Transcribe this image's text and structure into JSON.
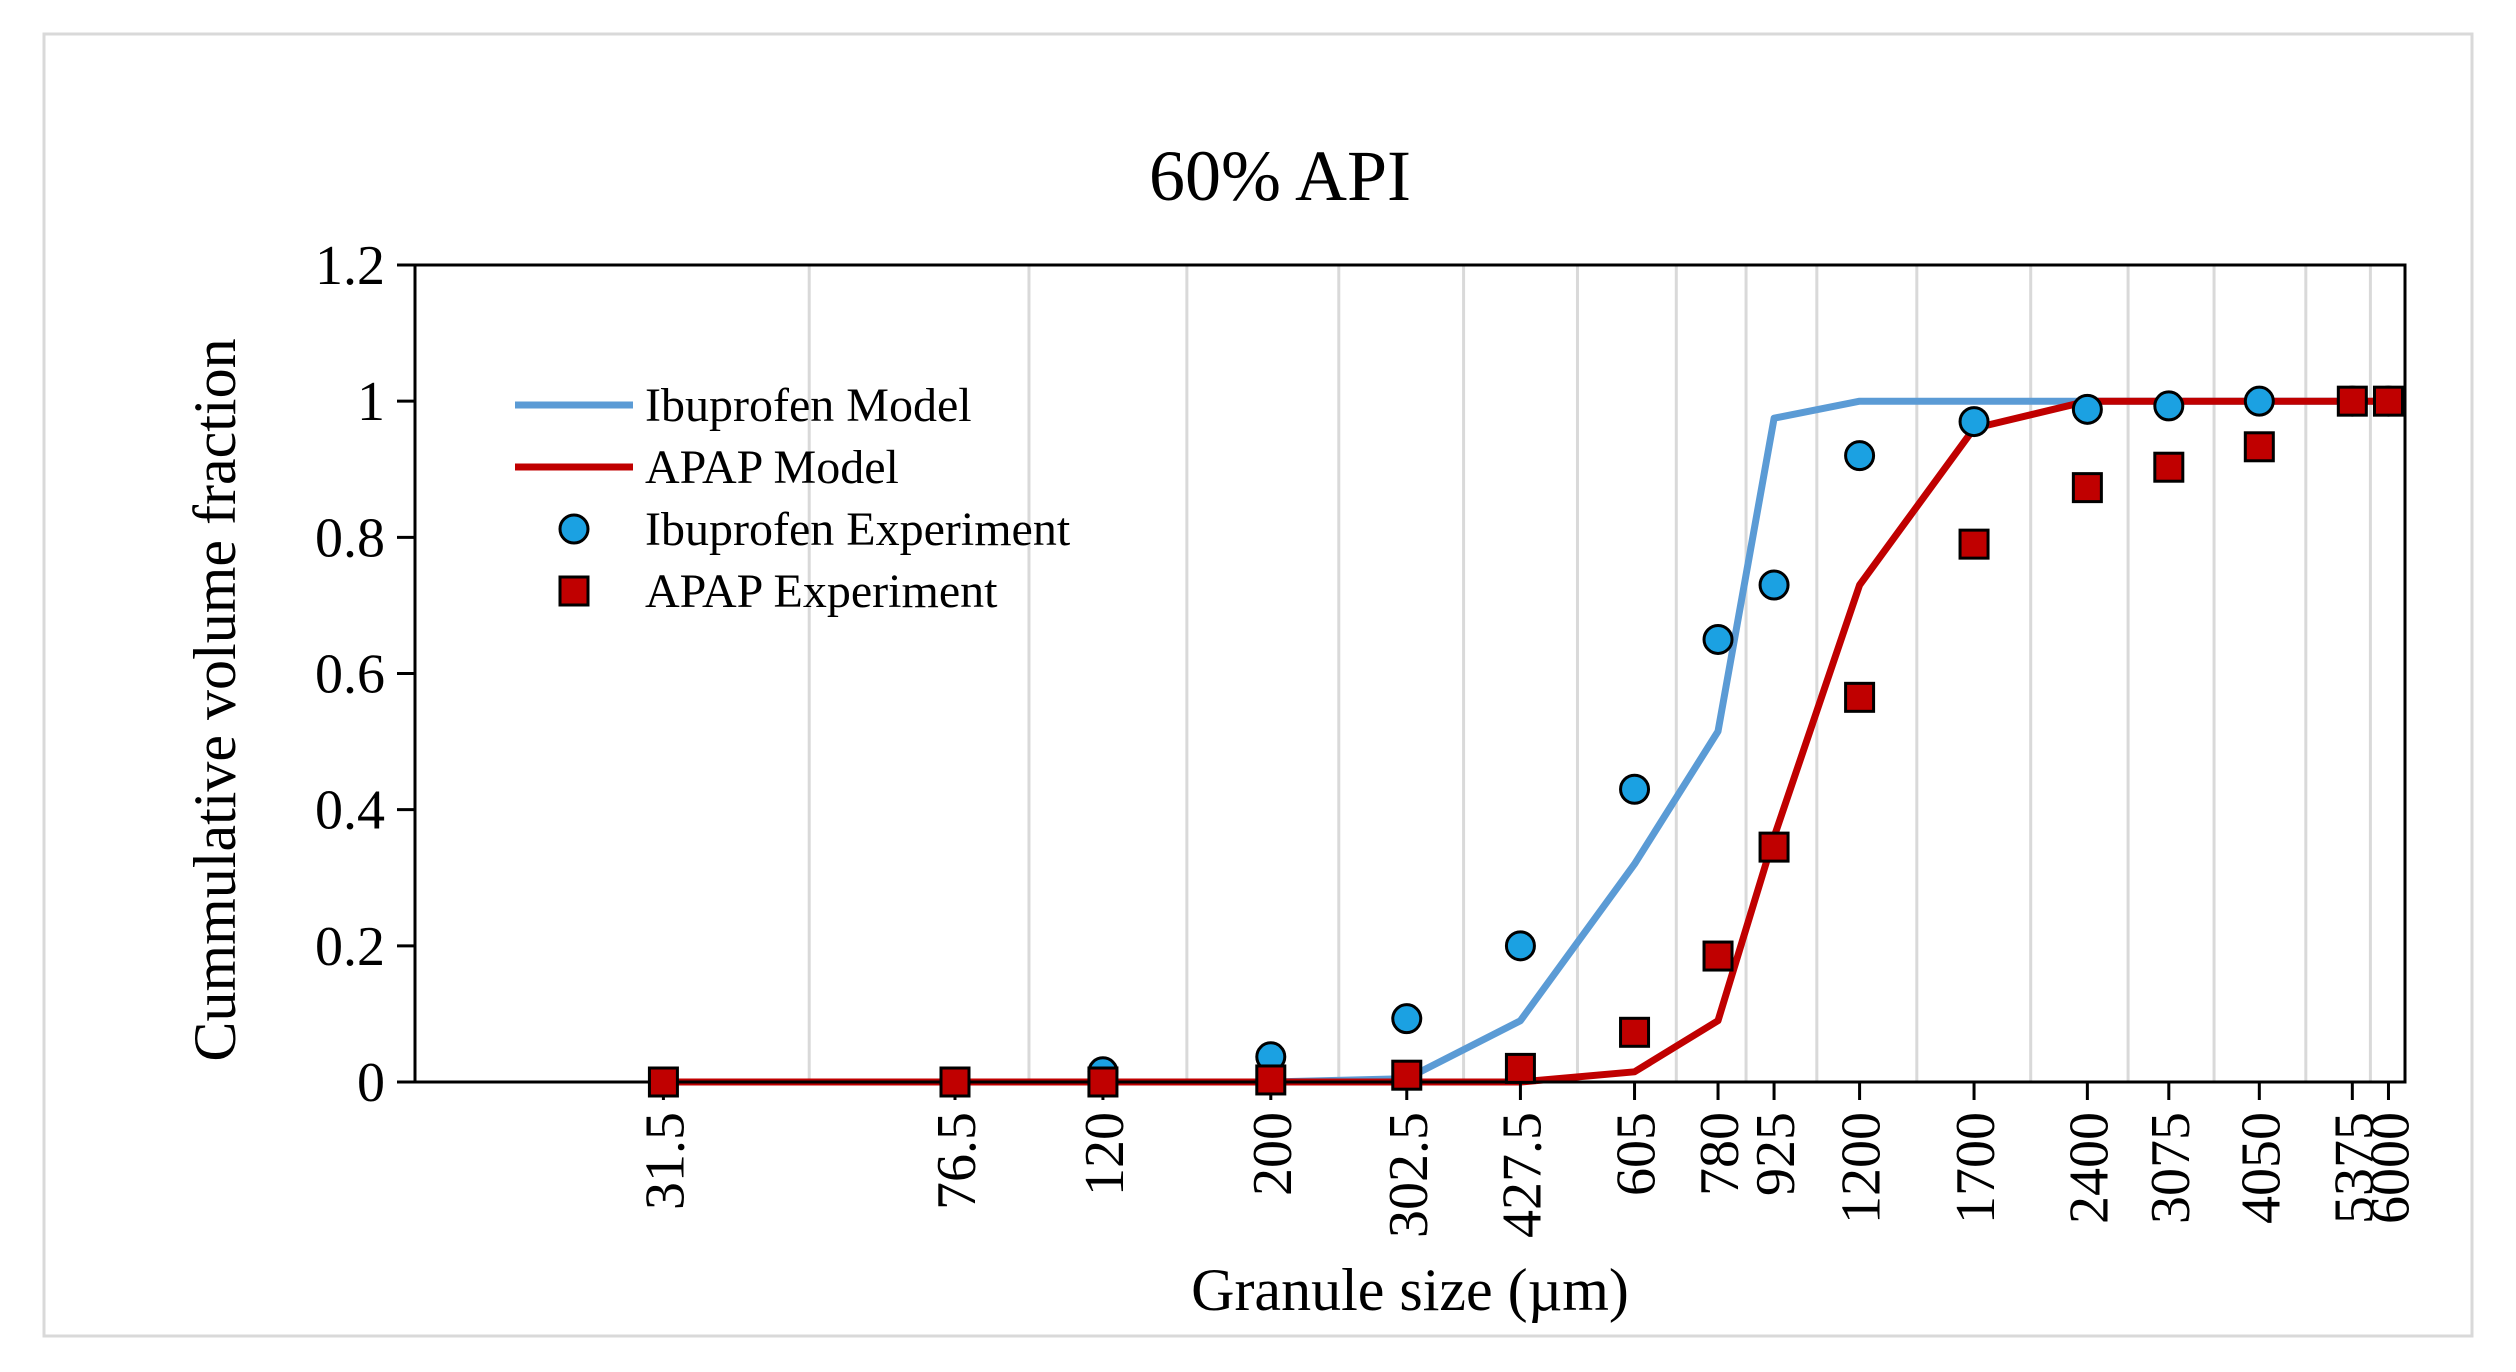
{
  "chart_data": {
    "type": "scatter",
    "title": "60% API",
    "xlabel": "Granule size (µm)",
    "ylabel": "Cummulative volume fraction",
    "categories": [
      "31.5",
      "76.5",
      "120",
      "200",
      "302.5",
      "427.5",
      "605",
      "780",
      "925",
      "1200",
      "1700",
      "2400",
      "3075",
      "4050",
      "5375",
      "6000"
    ],
    "x_scale": "log",
    "ylim": [
      0,
      1.2
    ],
    "yticks": [
      "0",
      "0.2",
      "0.4",
      "0.6",
      "0.8",
      "1",
      "1.2"
    ],
    "grid": "vertical",
    "legend_position": "top-left",
    "series": [
      {
        "name": "Ibuprofen Model",
        "kind": "line",
        "color": "#5B9BD5",
        "x": [
          31.5,
          76.5,
          120,
          200,
          302.5,
          427.5,
          605,
          780,
          925,
          1200,
          1700,
          2400,
          3075,
          4050,
          5375,
          6000
        ],
        "values": [
          0,
          0,
          0,
          0,
          0.005,
          0.09,
          0.32,
          0.515,
          0.975,
          1,
          1,
          1,
          1,
          1,
          1,
          1
        ]
      },
      {
        "name": "APAP Model",
        "kind": "line",
        "color": "#C00000",
        "x": [
          31.5,
          76.5,
          120,
          200,
          302.5,
          427.5,
          605,
          780,
          925,
          1200,
          1700,
          2400,
          3075,
          4050,
          5375,
          6000
        ],
        "values": [
          0,
          0,
          0,
          0,
          0,
          0,
          0.015,
          0.09,
          0.36,
          0.73,
          0.96,
          1,
          1,
          1,
          1,
          1
        ]
      },
      {
        "name": "Ibuprofen Experiment",
        "kind": "circle",
        "color": "#1BA1E2",
        "x": [
          31.5,
          76.5,
          120,
          200,
          302.5,
          427.5,
          605,
          780,
          925,
          1200,
          1700,
          2400,
          3075,
          4050,
          5375,
          6000
        ],
        "values": [
          0,
          0,
          0.015,
          0.037,
          0.093,
          0.2,
          0.43,
          0.65,
          0.73,
          0.92,
          0.97,
          0.988,
          0.993,
          1,
          1,
          1
        ]
      },
      {
        "name": "APAP Experiment",
        "kind": "square",
        "color": "#C00000",
        "x": [
          31.5,
          76.5,
          120,
          200,
          302.5,
          427.5,
          605,
          780,
          925,
          1200,
          1700,
          2400,
          3075,
          4050,
          5375,
          6000
        ],
        "values": [
          0,
          0,
          0,
          0.003,
          0.01,
          0.02,
          0.073,
          0.185,
          0.345,
          0.565,
          0.79,
          0.873,
          0.903,
          0.933,
          1,
          1
        ]
      }
    ]
  }
}
